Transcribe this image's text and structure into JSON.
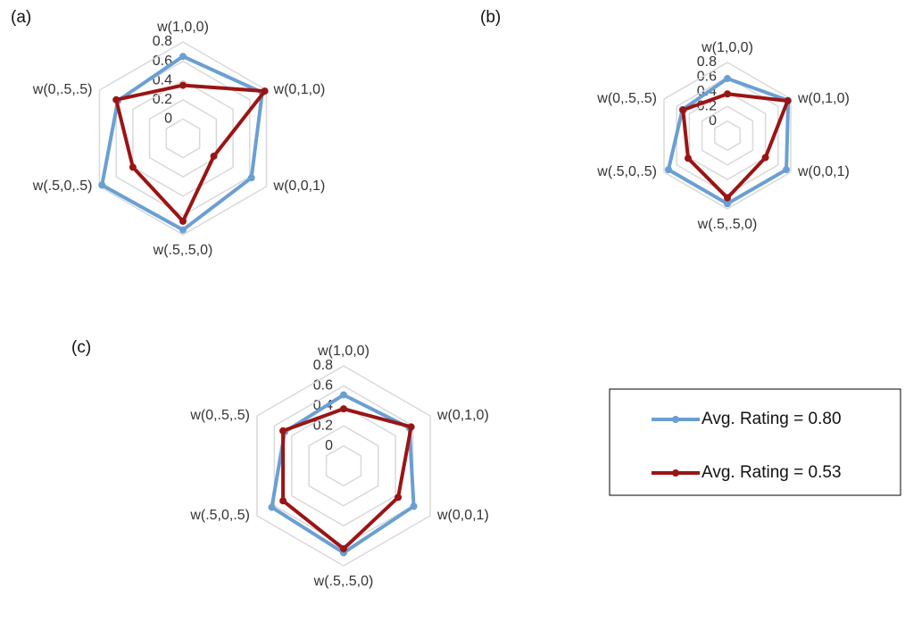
{
  "chart_data": [
    {
      "type": "radar",
      "title": "(a)",
      "categories": [
        "w(1,0,0)",
        "w(0,1,0)",
        "w(0,0,1)",
        "w(.5,.5,0)",
        "w(.5,0,.5)",
        "w(0,.5,.5)"
      ],
      "rlim": [
        -0.2,
        0.8
      ],
      "rticks": [
        0,
        0.2,
        0.4,
        0.6,
        0.8
      ],
      "grid": true,
      "series": [
        {
          "color": "#6a9fd4",
          "values": [
            0.65,
            0.75,
            0.62,
            0.75,
            0.77,
            0.58
          ]
        },
        {
          "color": "#9b1414",
          "values": [
            0.35,
            0.78,
            0.17,
            0.66,
            0.4,
            0.6
          ]
        }
      ]
    },
    {
      "type": "radar",
      "title": "(b)",
      "categories": [
        "w(1,0,0)",
        "w(0,1,0)",
        "w(0,0,1)",
        "w(.5,.5,0)",
        "w(.5,0,.5)",
        "w(0,.5,.5)"
      ],
      "rlim": [
        -0.2,
        0.8
      ],
      "rticks": [
        0,
        0.2,
        0.4,
        0.6,
        0.8
      ],
      "grid": true,
      "series": [
        {
          "color": "#6a9fd4",
          "values": [
            0.58,
            0.76,
            0.73,
            0.73,
            0.73,
            0.51
          ]
        },
        {
          "color": "#9b1414",
          "values": [
            0.37,
            0.75,
            0.4,
            0.65,
            0.42,
            0.5
          ]
        }
      ]
    },
    {
      "type": "radar",
      "title": "(c)",
      "categories": [
        "w(1,0,0)",
        "w(0,1,0)",
        "w(0,0,1)",
        "w(.5,.5,0)",
        "w(.5,0,.5)",
        "w(0,.5,.5)"
      ],
      "rlim": [
        -0.2,
        0.8
      ],
      "rticks": [
        0,
        0.2,
        0.4,
        0.6,
        0.8
      ],
      "grid": true,
      "series": [
        {
          "color": "#6a9fd4",
          "values": [
            0.51,
            0.56,
            0.61,
            0.67,
            0.63,
            0.48
          ]
        },
        {
          "color": "#9b1414",
          "values": [
            0.37,
            0.58,
            0.43,
            0.63,
            0.5,
            0.5
          ]
        }
      ]
    }
  ],
  "legend": {
    "entries": [
      {
        "name": "Avg. Rating = 0.80"
      },
      {
        "name": "Avg. Rating = 0.53"
      }
    ]
  }
}
